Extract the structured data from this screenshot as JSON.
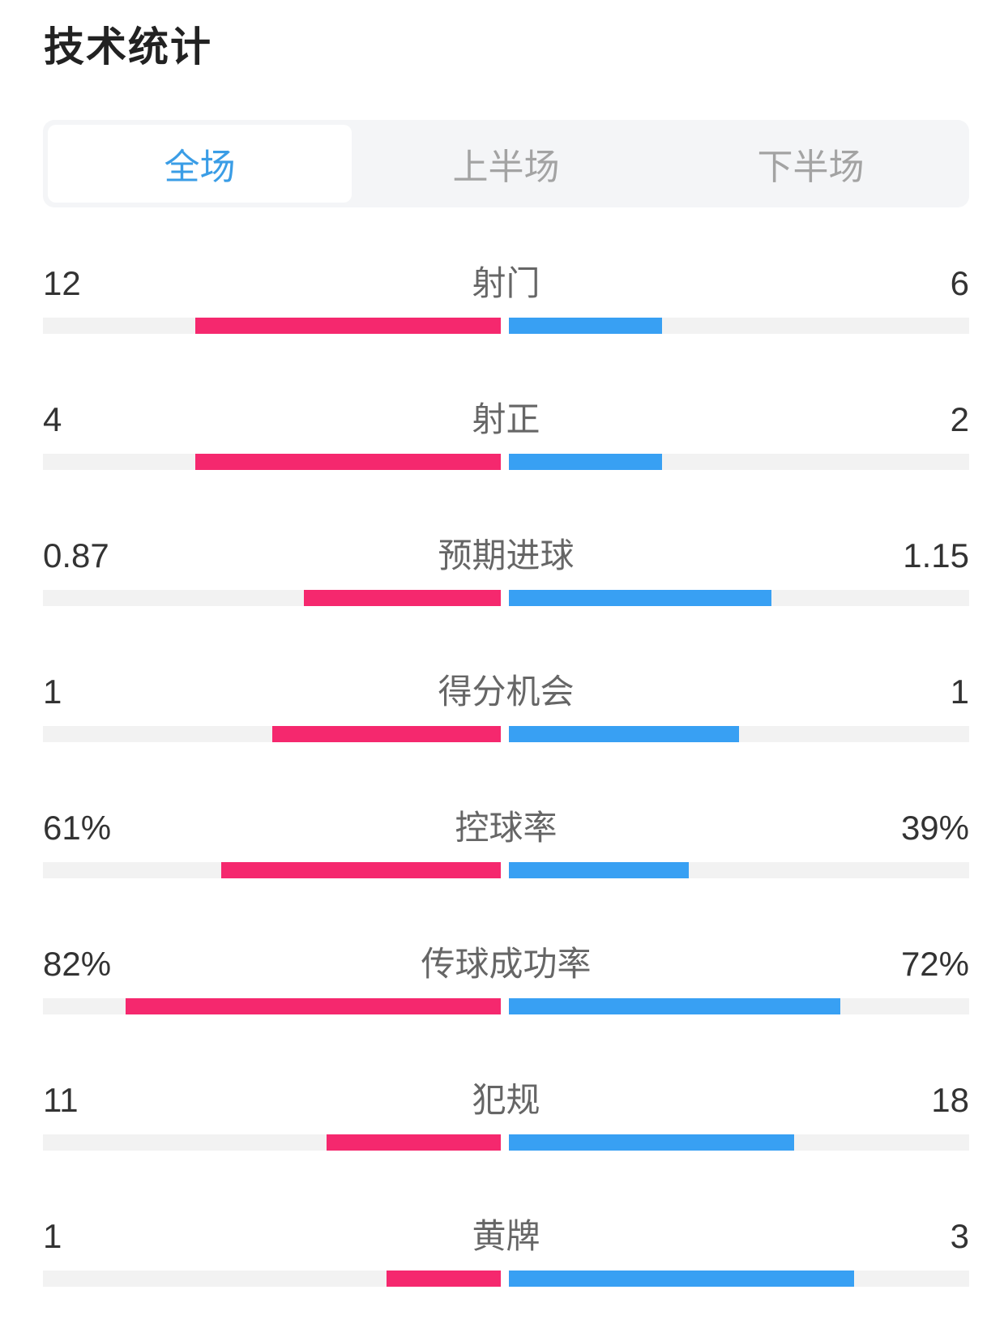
{
  "title": "技术统计",
  "tabs": [
    {
      "label": "全场",
      "active": true
    },
    {
      "label": "上半场",
      "active": false
    },
    {
      "label": "下半场",
      "active": false
    }
  ],
  "colors": {
    "home_bar": "#f5286e",
    "away_bar": "#38a0f3",
    "active_tab": "#3a9de6",
    "track": "#f2f2f2"
  },
  "stats": [
    {
      "label": "射门",
      "left": "12",
      "right": "6",
      "left_fill": 0.667,
      "right_fill": 0.333
    },
    {
      "label": "射正",
      "left": "4",
      "right": "2",
      "left_fill": 0.667,
      "right_fill": 0.333
    },
    {
      "label": "预期进球",
      "left": "0.87",
      "right": "1.15",
      "left_fill": 0.43,
      "right_fill": 0.57
    },
    {
      "label": "得分机会",
      "left": "1",
      "right": "1",
      "left_fill": 0.5,
      "right_fill": 0.5
    },
    {
      "label": "控球率",
      "left": "61%",
      "right": "39%",
      "left_fill": 0.61,
      "right_fill": 0.39
    },
    {
      "label": "传球成功率",
      "left": "82%",
      "right": "72%",
      "left_fill": 0.82,
      "right_fill": 0.72
    },
    {
      "label": "犯规",
      "left": "11",
      "right": "18",
      "left_fill": 0.38,
      "right_fill": 0.62
    },
    {
      "label": "黄牌",
      "left": "1",
      "right": "3",
      "left_fill": 0.25,
      "right_fill": 0.75
    }
  ]
}
